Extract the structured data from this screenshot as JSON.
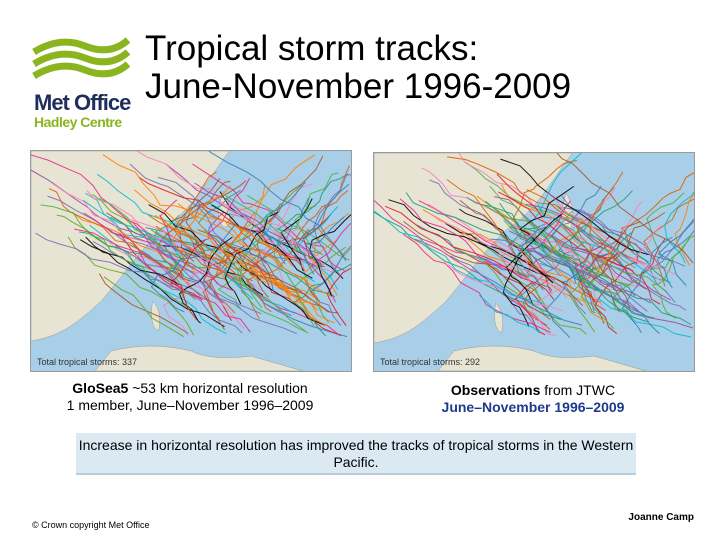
{
  "logo": {
    "line1": "Met Office",
    "line2": "Hadley Centre",
    "accent": "#8ab51f",
    "navy": "#1f2e5a"
  },
  "title": {
    "line1": "Tropical storm tracks:",
    "line2": "June-November 1996-2009"
  },
  "maps": [
    {
      "count_label": "Total tropical storms: 337"
    },
    {
      "count_label": "Total tropical storms: 292"
    }
  ],
  "captions": {
    "left": {
      "bold": "GloSea5",
      "rest": " ~53 km horizontal resolution",
      "line2": "1 member, June–November 1996–2009"
    },
    "right": {
      "bold": "Observations",
      "rest": " from JTWC",
      "line2": "June–November 1996–2009"
    }
  },
  "note": "Increase in horizontal resolution has improved the tracks of tropical storms in the Western Pacific.",
  "footer": {
    "copyright": "© Crown copyright   Met Office",
    "author": "Joanne Camp"
  },
  "colors": {
    "ocean": "#a9cfe8",
    "land": "#e8e4d4",
    "note_bg": "#dbeaf2"
  }
}
